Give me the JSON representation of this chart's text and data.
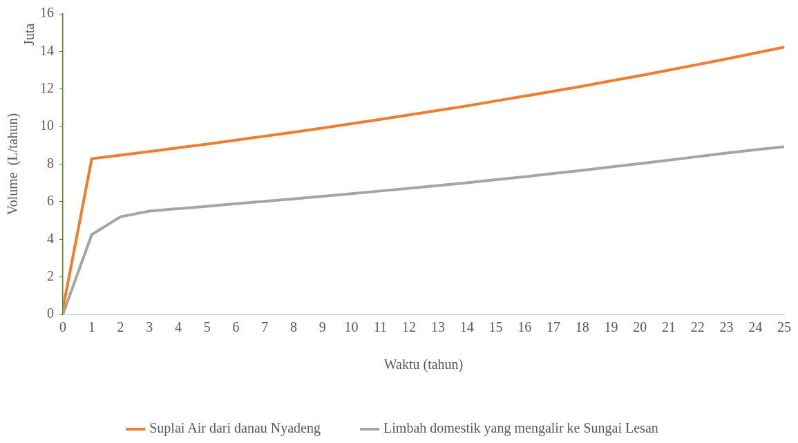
{
  "chart_data": {
    "type": "line",
    "xlabel": "Waktu (tahun)",
    "ylabel": "Volume  (L/tahun)",
    "annotations": [
      "Juta"
    ],
    "x": [
      0,
      1,
      2,
      3,
      4,
      5,
      6,
      7,
      8,
      9,
      10,
      11,
      12,
      13,
      14,
      15,
      16,
      17,
      18,
      19,
      20,
      21,
      22,
      23,
      24,
      25
    ],
    "xlim": [
      0,
      25
    ],
    "xticks": [
      0,
      1,
      2,
      3,
      4,
      5,
      6,
      7,
      8,
      9,
      10,
      11,
      12,
      13,
      14,
      15,
      16,
      17,
      18,
      19,
      20,
      21,
      22,
      23,
      24,
      25
    ],
    "ylim": [
      0,
      16
    ],
    "yticks": [
      0,
      2,
      4,
      6,
      8,
      10,
      12,
      14,
      16
    ],
    "series": [
      {
        "name": "Suplai Air dari danau Nyadeng",
        "color": "#ed7d31",
        "values": [
          0.3,
          8.29,
          8.48,
          8.67,
          8.87,
          9.07,
          9.28,
          9.49,
          9.7,
          9.92,
          10.15,
          10.38,
          10.62,
          10.86,
          11.1,
          11.36,
          11.62,
          11.88,
          12.15,
          12.43,
          12.71,
          13.0,
          13.3,
          13.6,
          13.91,
          14.23
        ]
      },
      {
        "name": "Limbah domestik yang mengalir ke Sungai Lesan",
        "color": "#a5a5a5",
        "values": [
          0,
          4.25,
          5.2,
          5.5,
          5.63,
          5.76,
          5.89,
          6.02,
          6.15,
          6.29,
          6.43,
          6.57,
          6.71,
          6.86,
          7.01,
          7.17,
          7.33,
          7.5,
          7.67,
          7.85,
          8.03,
          8.21,
          8.4,
          8.59,
          8.76,
          8.93
        ]
      }
    ],
    "grid": false,
    "legend": "bottom",
    "marker": "none",
    "line_style": "solid"
  }
}
